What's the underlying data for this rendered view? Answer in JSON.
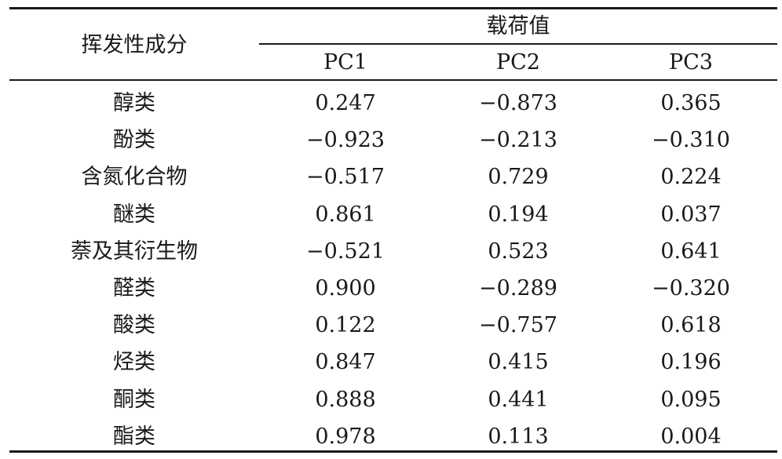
{
  "table": {
    "header_left": "挥发性成分",
    "header_group": "载荷值",
    "columns": [
      "PC1",
      "PC2",
      "PC3"
    ],
    "rows": [
      {
        "name": "醇类",
        "values": [
          "0.247",
          "−0.873",
          "0.365"
        ]
      },
      {
        "name": "酚类",
        "values": [
          "−0.923",
          "−0.213",
          "−0.310"
        ]
      },
      {
        "name": "含氮化合物",
        "values": [
          "−0.517",
          "0.729",
          "0.224"
        ]
      },
      {
        "name": "醚类",
        "values": [
          "0.861",
          "0.194",
          "0.037"
        ]
      },
      {
        "name": "萘及其衍生物",
        "values": [
          "−0.521",
          "0.523",
          "0.641"
        ]
      },
      {
        "name": "醛类",
        "values": [
          "0.900",
          "−0.289",
          "−0.320"
        ]
      },
      {
        "name": "酸类",
        "values": [
          "0.122",
          "−0.757",
          "0.618"
        ]
      },
      {
        "name": "烃类",
        "values": [
          "0.847",
          "0.415",
          "0.196"
        ]
      },
      {
        "name": "酮类",
        "values": [
          "0.888",
          "0.441",
          "0.095"
        ]
      },
      {
        "name": "酯类",
        "values": [
          "0.978",
          "0.113",
          "0.004"
        ]
      }
    ]
  }
}
